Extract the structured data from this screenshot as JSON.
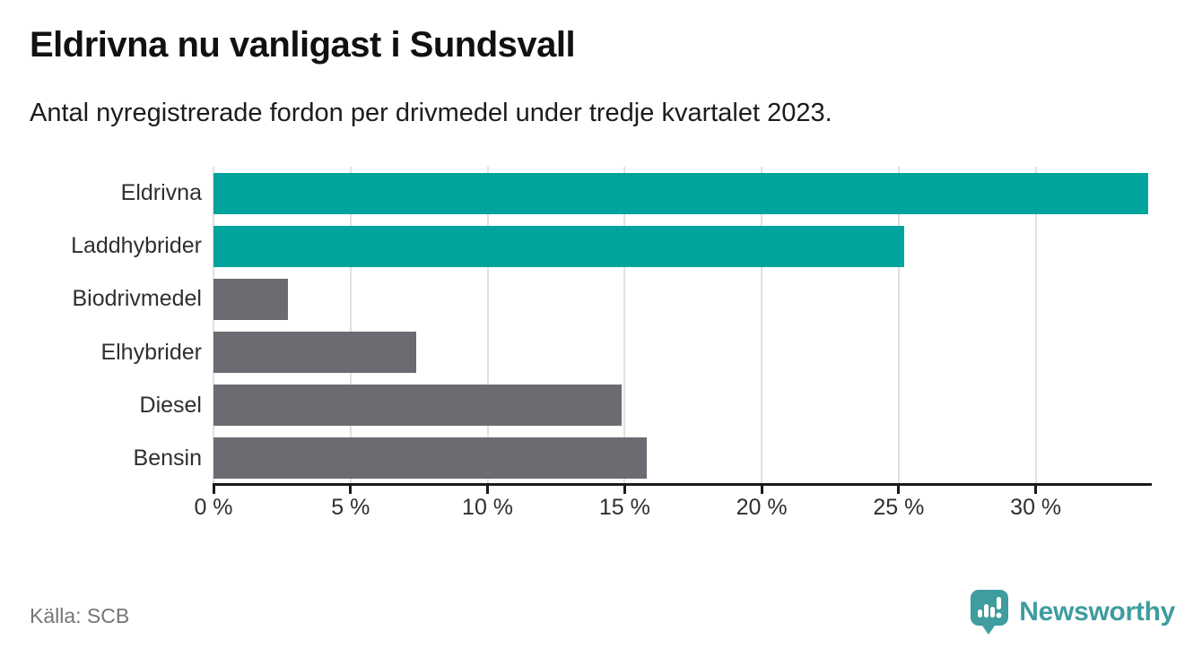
{
  "header": {
    "title": "Eldrivna nu vanligast i Sundsvall",
    "subtitle": "Antal nyregistrerade fordon per drivmedel under tredje kvartalet 2023."
  },
  "footer": {
    "source": "Källa: SCB",
    "brand": "Newsworthy"
  },
  "colors": {
    "accent": "#00a49c",
    "muted": "#6c6b71",
    "brand": "#3f9c9f",
    "gridline": "#e0e0e0",
    "axis": "#1a1a1a"
  },
  "icons": {
    "brand_icon": "newsworthy-speech-bubble-bar-chart"
  },
  "chart_data": {
    "type": "bar",
    "orientation": "horizontal",
    "title": "Eldrivna nu vanligast i Sundsvall",
    "subtitle": "Antal nyregistrerade fordon per drivmedel under tredje kvartalet 2023.",
    "categories": [
      "Eldrivna",
      "Laddhybrider",
      "Biodrivmedel",
      "Elhybrider",
      "Diesel",
      "Bensin"
    ],
    "values": [
      34.1,
      25.2,
      2.7,
      7.4,
      14.9,
      15.8
    ],
    "unit": "%",
    "bar_colors": [
      "#00a49c",
      "#00a49c",
      "#6c6b71",
      "#6c6b71",
      "#6c6b71",
      "#6c6b71"
    ],
    "xlabel": "",
    "ylabel": "",
    "xlim": [
      0,
      34.2
    ],
    "x_tick_values": [
      0,
      5,
      10,
      15,
      20,
      25,
      30
    ],
    "x_tick_labels": [
      "0 %",
      "5 %",
      "10 %",
      "15 %",
      "20 %",
      "25 %",
      "30 %"
    ],
    "grid": true,
    "legend": false,
    "source": "Källa: SCB"
  }
}
